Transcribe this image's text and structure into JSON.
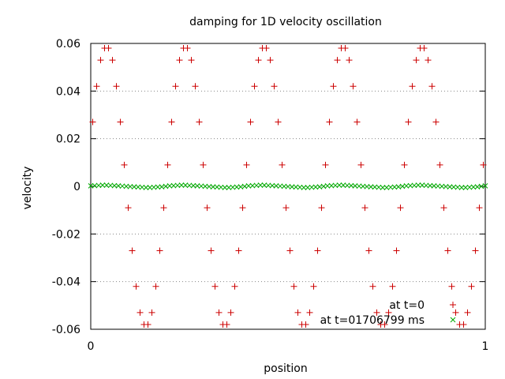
{
  "chart_data": {
    "type": "scatter",
    "title": "damping for 1D velocity oscillation",
    "xlabel": "position",
    "ylabel": "velocity",
    "xlim": [
      0,
      1
    ],
    "ylim": [
      -0.06,
      0.06
    ],
    "x_tick_labels": [
      "0",
      "1"
    ],
    "x_ticks": [
      0,
      1
    ],
    "y_tick_labels": [
      "0.06",
      "0.04",
      "0.02",
      "0",
      "-0.02",
      "-0.04",
      "-0.06"
    ],
    "y_ticks": [
      0.06,
      0.04,
      0.02,
      0,
      -0.02,
      -0.04,
      -0.06
    ],
    "grid": "horizontal dotted",
    "legend_position": "bottom-right",
    "series": [
      {
        "name": "at t=0",
        "marker": "plus",
        "color": "#cc0000",
        "x": [
          0.005,
          0.015,
          0.025,
          0.035,
          0.045,
          0.055,
          0.065,
          0.075,
          0.085,
          0.095,
          0.105,
          0.115,
          0.125,
          0.135,
          0.145,
          0.155,
          0.165,
          0.175,
          0.185,
          0.195,
          0.205,
          0.215,
          0.225,
          0.235,
          0.245,
          0.255,
          0.265,
          0.275,
          0.285,
          0.295,
          0.305,
          0.315,
          0.325,
          0.335,
          0.345,
          0.355,
          0.365,
          0.375,
          0.385,
          0.395,
          0.405,
          0.415,
          0.425,
          0.435,
          0.445,
          0.455,
          0.465,
          0.475,
          0.485,
          0.495,
          0.505,
          0.515,
          0.525,
          0.535,
          0.545,
          0.555,
          0.565,
          0.575,
          0.585,
          0.595,
          0.605,
          0.615,
          0.625,
          0.635,
          0.645,
          0.655,
          0.665,
          0.675,
          0.685,
          0.695,
          0.705,
          0.715,
          0.725,
          0.735,
          0.745,
          0.755,
          0.765,
          0.775,
          0.785,
          0.795,
          0.805,
          0.815,
          0.825,
          0.835,
          0.845,
          0.855,
          0.865,
          0.875,
          0.885,
          0.895,
          0.905,
          0.915,
          0.925,
          0.935,
          0.945,
          0.955,
          0.965,
          0.975,
          0.985,
          0.995
        ],
        "y": [
          0.027,
          0.042,
          0.053,
          0.058,
          0.058,
          0.053,
          0.042,
          0.027,
          0.009,
          -0.009,
          -0.027,
          -0.042,
          -0.053,
          -0.058,
          -0.058,
          -0.053,
          -0.042,
          -0.027,
          -0.009,
          0.009,
          0.027,
          0.042,
          0.053,
          0.058,
          0.058,
          0.053,
          0.042,
          0.027,
          0.009,
          -0.009,
          -0.027,
          -0.042,
          -0.053,
          -0.058,
          -0.058,
          -0.053,
          -0.042,
          -0.027,
          -0.009,
          0.009,
          0.027,
          0.042,
          0.053,
          0.058,
          0.058,
          0.053,
          0.042,
          0.027,
          0.009,
          -0.009,
          -0.027,
          -0.042,
          -0.053,
          -0.058,
          -0.058,
          -0.053,
          -0.042,
          -0.027,
          -0.009,
          0.009,
          0.027,
          0.042,
          0.053,
          0.058,
          0.058,
          0.053,
          0.042,
          0.027,
          0.009,
          -0.009,
          -0.027,
          -0.042,
          -0.053,
          -0.058,
          -0.058,
          -0.053,
          -0.042,
          -0.027,
          -0.009,
          0.009,
          0.027,
          0.042,
          0.053,
          0.058,
          0.058,
          0.053,
          0.042,
          0.027,
          0.009,
          -0.009,
          -0.027,
          -0.042,
          -0.053,
          -0.058,
          -0.058,
          -0.053,
          -0.042,
          -0.027,
          -0.009,
          0.009
        ]
      },
      {
        "name": "at t=01706799 ms",
        "marker": "cross",
        "color": "#00aa00",
        "x": [
          0.0,
          0.01,
          0.02,
          0.03,
          0.04,
          0.05,
          0.06,
          0.07,
          0.08,
          0.09,
          0.1,
          0.11,
          0.12,
          0.13,
          0.14,
          0.15,
          0.16,
          0.17,
          0.18,
          0.19,
          0.2,
          0.21,
          0.22,
          0.23,
          0.24,
          0.25,
          0.26,
          0.27,
          0.28,
          0.29,
          0.3,
          0.31,
          0.32,
          0.33,
          0.34,
          0.35,
          0.36,
          0.37,
          0.38,
          0.39,
          0.4,
          0.41,
          0.42,
          0.43,
          0.44,
          0.45,
          0.46,
          0.47,
          0.48,
          0.49,
          0.5,
          0.51,
          0.52,
          0.53,
          0.54,
          0.55,
          0.56,
          0.57,
          0.58,
          0.59,
          0.6,
          0.61,
          0.62,
          0.63,
          0.64,
          0.65,
          0.66,
          0.67,
          0.68,
          0.69,
          0.7,
          0.71,
          0.72,
          0.73,
          0.74,
          0.75,
          0.76,
          0.77,
          0.78,
          0.79,
          0.8,
          0.81,
          0.82,
          0.83,
          0.84,
          0.85,
          0.86,
          0.87,
          0.88,
          0.89,
          0.9,
          0.91,
          0.92,
          0.93,
          0.94,
          0.95,
          0.96,
          0.97,
          0.98,
          0.99,
          1.0
        ],
        "y": [
          0.0002,
          0.0003,
          0.0004,
          0.0005,
          0.0005,
          0.0004,
          0.0003,
          0.0002,
          0.0001,
          0.0,
          -0.0001,
          -0.0002,
          -0.0003,
          -0.0004,
          -0.0005,
          -0.0005,
          -0.0004,
          -0.0003,
          -0.0002,
          0.0,
          0.0002,
          0.0003,
          0.0004,
          0.0005,
          0.0005,
          0.0004,
          0.0003,
          0.0002,
          0.0001,
          0.0,
          -0.0001,
          -0.0002,
          -0.0003,
          -0.0004,
          -0.0005,
          -0.0005,
          -0.0004,
          -0.0003,
          -0.0002,
          0.0,
          0.0002,
          0.0003,
          0.0004,
          0.0005,
          0.0005,
          0.0004,
          0.0003,
          0.0002,
          0.0001,
          0.0,
          -0.0001,
          -0.0002,
          -0.0003,
          -0.0004,
          -0.0005,
          -0.0005,
          -0.0004,
          -0.0003,
          -0.0002,
          0.0,
          0.0002,
          0.0003,
          0.0004,
          0.0005,
          0.0005,
          0.0004,
          0.0003,
          0.0002,
          0.0001,
          0.0,
          -0.0001,
          -0.0002,
          -0.0003,
          -0.0004,
          -0.0005,
          -0.0005,
          -0.0004,
          -0.0003,
          -0.0002,
          0.0,
          0.0002,
          0.0003,
          0.0004,
          0.0005,
          0.0005,
          0.0004,
          0.0003,
          0.0002,
          0.0001,
          0.0,
          -0.0001,
          -0.0002,
          -0.0003,
          -0.0004,
          -0.0005,
          -0.0005,
          -0.0004,
          -0.0003,
          -0.0002,
          0.0,
          0.0002
        ]
      }
    ]
  }
}
